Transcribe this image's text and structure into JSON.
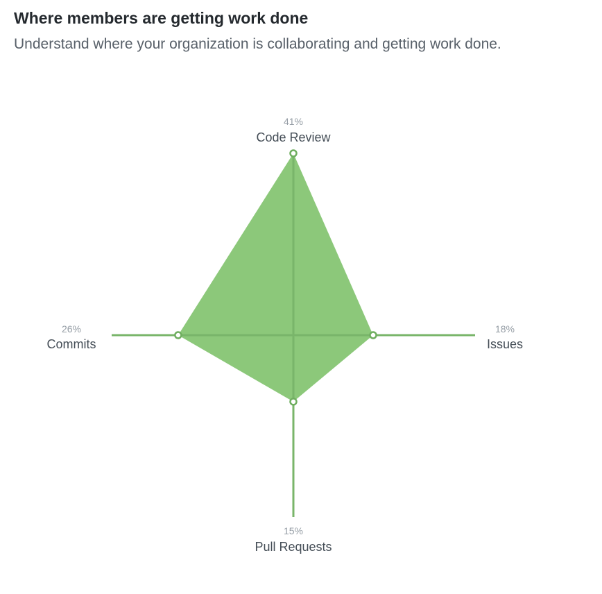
{
  "header": {
    "title": "Where members are getting work done",
    "subtitle": "Understand where your organization is collaborating and getting work done."
  },
  "colors": {
    "fill": "#8cc87a",
    "axis": "#79b56a",
    "point_stroke": "#6fae5f",
    "point_fill": "#ffffff"
  },
  "chart_data": {
    "type": "radar",
    "title": "",
    "axes": [
      {
        "name": "Code Review",
        "value": 41,
        "label": "41%"
      },
      {
        "name": "Issues",
        "value": 18,
        "label": "18%"
      },
      {
        "name": "Pull Requests",
        "value": 15,
        "label": "15%"
      },
      {
        "name": "Commits",
        "value": 26,
        "label": "26%"
      }
    ],
    "unit": "%",
    "rmax": 41,
    "grid": false
  }
}
